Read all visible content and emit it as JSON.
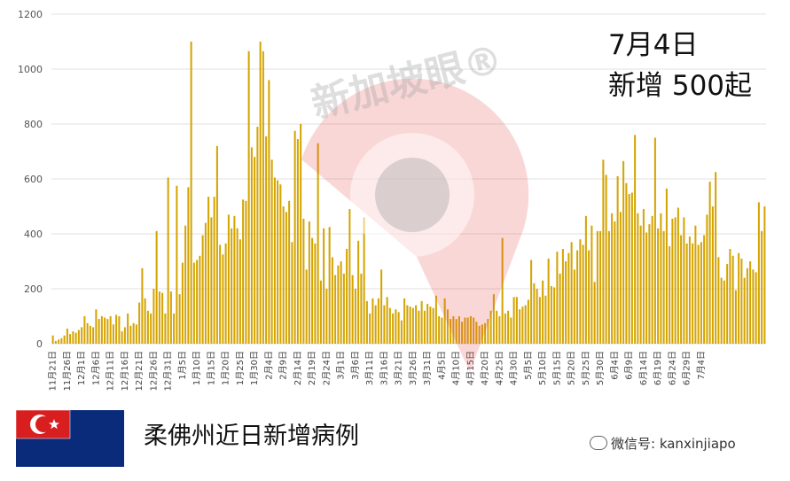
{
  "chart_data": {
    "type": "bar",
    "title": "柔佛州近日新增病例",
    "annotation": {
      "date": "7月4日",
      "count": "新增 500起"
    },
    "ylim": [
      0,
      1200
    ],
    "yticks": [
      0,
      200,
      400,
      600,
      800,
      1000,
      1200
    ],
    "grid": true,
    "bar_color": "#d4a400",
    "tick_labels": [
      "11月21日",
      "11月26日",
      "12月1日",
      "12月6日",
      "12月11日",
      "12月16日",
      "12月21日",
      "12月26日",
      "12月31日",
      "1月5日",
      "1月10日",
      "1月15日",
      "1月20日",
      "1月25日",
      "1月30日",
      "2月4日",
      "2月9日",
      "2月14日",
      "2月19日",
      "2月24日",
      "3月1日",
      "3月6日",
      "3月11日",
      "3月16日",
      "3月21日",
      "3月26日",
      "3月31日",
      "4月5日",
      "4月10日",
      "4月15日",
      "4月20日",
      "4月25日",
      "4月30日",
      "5月5日",
      "5月10日",
      "5月15日",
      "5月20日",
      "5月25日",
      "5月30日",
      "6月4日",
      "6月9日",
      "6月14日",
      "6月19日",
      "6月24日",
      "6月29日",
      "7月4日"
    ],
    "values": [
      30,
      10,
      15,
      20,
      30,
      55,
      35,
      45,
      40,
      50,
      60,
      100,
      75,
      65,
      60,
      125,
      90,
      100,
      95,
      90,
      100,
      70,
      105,
      100,
      45,
      60,
      110,
      65,
      75,
      70,
      150,
      275,
      165,
      120,
      110,
      200,
      410,
      190,
      185,
      110,
      605,
      190,
      110,
      575,
      180,
      295,
      430,
      570,
      1100,
      295,
      305,
      320,
      395,
      440,
      535,
      460,
      535,
      720,
      360,
      325,
      365,
      470,
      420,
      465,
      420,
      380,
      525,
      520,
      1065,
      715,
      680,
      790,
      1100,
      1065,
      755,
      960,
      670,
      605,
      595,
      580,
      500,
      480,
      520,
      370,
      775,
      745,
      800,
      455,
      270,
      445,
      385,
      365,
      730,
      230,
      420,
      200,
      425,
      315,
      250,
      285,
      300,
      255,
      345,
      490,
      250,
      200,
      375,
      255,
      460,
      155,
      110,
      165,
      140,
      165,
      270,
      140,
      170,
      130,
      110,
      125,
      115,
      85,
      165,
      140,
      135,
      130,
      140,
      120,
      155,
      120,
      145,
      135,
      130,
      175,
      100,
      95,
      165,
      125,
      90,
      100,
      90,
      100,
      80,
      95,
      95,
      100,
      95,
      80,
      65,
      70,
      75,
      90,
      120,
      180,
      120,
      100,
      385,
      110,
      120,
      95,
      170,
      170,
      125,
      135,
      140,
      160,
      305,
      220,
      200,
      170,
      230,
      175,
      310,
      210,
      205,
      335,
      255,
      345,
      300,
      330,
      370,
      270,
      340,
      380,
      360,
      465,
      340,
      430,
      225,
      410,
      410,
      670,
      615,
      410,
      475,
      445,
      610,
      480,
      665,
      585,
      545,
      550,
      760,
      475,
      430,
      490,
      405,
      435,
      465,
      750,
      420,
      475,
      410,
      565,
      355,
      455,
      460,
      495,
      395,
      460,
      365,
      390,
      365,
      430,
      360,
      370,
      395,
      470,
      590,
      500,
      625,
      315,
      240,
      230,
      290,
      345,
      320,
      195,
      330,
      310,
      240,
      275,
      300,
      270,
      260,
      515,
      410,
      500
    ]
  },
  "footer": {
    "title": "柔佛州近日新增病例",
    "credit": "微信号: kanxinjiapo"
  },
  "watermark": {
    "text": "新加坡眼®"
  },
  "colors": {
    "bar": "#d4a400",
    "grid": "#e0e0e0",
    "flag_blue": "#0a2a7a",
    "flag_red": "#d81e1e",
    "watermark_red": "#e84a4a"
  }
}
